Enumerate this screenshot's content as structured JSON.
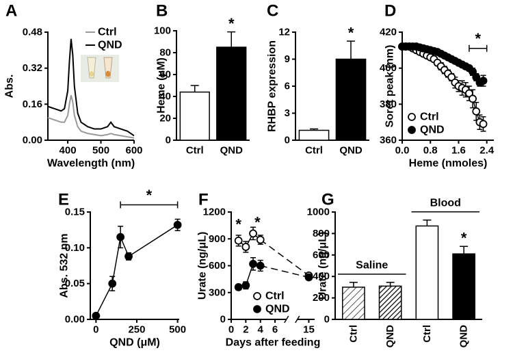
{
  "chart_data": [
    {
      "type": "line",
      "panel": "A",
      "ylabel": "Abs.",
      "xlabel": "Wavelength (nm)",
      "x": [
        340,
        360,
        380,
        390,
        400,
        405,
        410,
        415,
        420,
        430,
        440,
        460,
        480,
        500,
        520,
        530,
        540,
        560,
        580,
        600
      ],
      "series": [
        {
          "name": "Ctrl",
          "color": "#999999",
          "values": [
            0.1,
            0.09,
            0.08,
            0.08,
            0.11,
            0.16,
            0.2,
            0.17,
            0.11,
            0.06,
            0.04,
            0.03,
            0.025,
            0.02,
            0.025,
            0.03,
            0.025,
            0.02,
            0.015,
            0.01
          ]
        },
        {
          "name": "QND",
          "color": "#000000",
          "values": [
            0.15,
            0.14,
            0.13,
            0.14,
            0.22,
            0.35,
            0.45,
            0.38,
            0.24,
            0.12,
            0.08,
            0.06,
            0.05,
            0.05,
            0.06,
            0.08,
            0.06,
            0.05,
            0.04,
            0.02
          ]
        }
      ],
      "xlim": [
        340,
        600
      ],
      "xticks": [
        400,
        500,
        600
      ],
      "ylim": [
        0,
        0.48
      ],
      "yticks": [
        {
          "value": 0,
          "label": "0.00"
        },
        {
          "value": 0.16,
          "label": "0.16"
        },
        {
          "value": 0.32,
          "label": "0.32"
        },
        {
          "value": 0.48,
          "label": "0.48"
        }
      ],
      "legend": "upper right"
    },
    {
      "type": "bar",
      "panel": "B",
      "ylabel": "Heme (μM)",
      "categories": [
        "Ctrl",
        "QND"
      ],
      "values": [
        44,
        85
      ],
      "errors": [
        6,
        14
      ],
      "colors": [
        "#ffffff",
        "#000000"
      ],
      "significance": [
        null,
        "*"
      ],
      "ylim": [
        0,
        100
      ],
      "yticks": [
        0,
        20,
        40,
        60,
        80,
        100
      ]
    },
    {
      "type": "bar",
      "panel": "C",
      "ylabel": "RHBP expression",
      "categories": [
        "Ctrl",
        "QND"
      ],
      "values": [
        1.1,
        9.0
      ],
      "errors": [
        0.15,
        2.0
      ],
      "colors": [
        "#ffffff",
        "#000000"
      ],
      "significance": [
        null,
        "*"
      ],
      "ylim": [
        0,
        12
      ],
      "yticks": [
        0,
        3,
        6,
        9,
        12
      ]
    },
    {
      "type": "line",
      "panel": "D",
      "ylabel": "Soret peak (nm)",
      "xlabel": "Heme (nmoles)",
      "markers": true,
      "x": [
        0,
        0.1,
        0.2,
        0.3,
        0.4,
        0.5,
        0.6,
        0.7,
        0.8,
        0.9,
        1.0,
        1.1,
        1.2,
        1.3,
        1.4,
        1.5,
        1.6,
        1.7,
        1.8,
        1.9,
        2.0,
        2.1,
        2.2,
        2.3
      ],
      "series": [
        {
          "name": "Ctrl",
          "color": "#000000",
          "marker": "open",
          "values": [
            412,
            412,
            412,
            411,
            410,
            409,
            408,
            407,
            406,
            405,
            403,
            401,
            399,
            397,
            395,
            392,
            390,
            389,
            388,
            386,
            383,
            376,
            370,
            369
          ],
          "errors": [
            1,
            1,
            1,
            1,
            1,
            1,
            1,
            1,
            1,
            1,
            1.5,
            2,
            2,
            2,
            2,
            3,
            3,
            4,
            4,
            4,
            5,
            5,
            4,
            4
          ]
        },
        {
          "name": "QND",
          "color": "#000000",
          "marker": "filled",
          "values": [
            412,
            412,
            412,
            412,
            412,
            411.5,
            411,
            410.5,
            410,
            409.5,
            409,
            408,
            407,
            406,
            405,
            404,
            403,
            402,
            401,
            400,
            398,
            395,
            392,
            393
          ],
          "errors": [
            1,
            1,
            1,
            1,
            1,
            1,
            1,
            1,
            1,
            1,
            1,
            1,
            1,
            1,
            1,
            1,
            1,
            1,
            1.5,
            1.5,
            2,
            2,
            2,
            3
          ]
        }
      ],
      "xlim": [
        0,
        2.6
      ],
      "xticks": [
        {
          "value": 0,
          "label": "0.0"
        },
        {
          "value": 0.8,
          "label": "0.8"
        },
        {
          "value": 1.6,
          "label": "1.6"
        },
        {
          "value": 2.4,
          "label": "2.4"
        }
      ],
      "ylim": [
        360,
        420
      ],
      "yticks": [
        360,
        380,
        400,
        420
      ],
      "annotation": {
        "text": "*",
        "x_range": [
          1.9,
          2.4
        ],
        "y": 411
      },
      "legend": "lower left"
    },
    {
      "type": "line",
      "panel": "E",
      "ylabel": "Abs. 532 nm",
      "xlabel": "QND (μM)",
      "markers": true,
      "x": [
        0,
        100,
        150,
        200,
        500
      ],
      "values": [
        0.005,
        0.05,
        0.115,
        0.088,
        0.132
      ],
      "errors": [
        0.003,
        0.01,
        0.015,
        0.005,
        0.008
      ],
      "color": "#000000",
      "marker": "filled",
      "xlim": [
        -35,
        510
      ],
      "xticks": [
        0,
        250,
        500
      ],
      "ylim": [
        0,
        0.15
      ],
      "yticks": [
        {
          "value": 0,
          "label": "0.00"
        },
        {
          "value": 0.05,
          "label": "0.05"
        },
        {
          "value": 0.1,
          "label": "0.10"
        },
        {
          "value": 0.15,
          "label": "0.15"
        }
      ],
      "annotation": {
        "text": "*",
        "x_range": [
          150,
          500
        ],
        "y": 0.16
      }
    },
    {
      "type": "line",
      "panel": "F",
      "ylabel": "Urate (ng/μL)",
      "xlabel": "Days after feeding",
      "markers": true,
      "x": [
        1,
        2,
        3,
        4,
        15
      ],
      "series": [
        {
          "name": "Ctrl",
          "color": "#000000",
          "marker": "open",
          "values": [
            880,
            810,
            960,
            890,
            490
          ],
          "errors": [
            60,
            60,
            70,
            50,
            20
          ]
        },
        {
          "name": "QND",
          "color": "#000000",
          "marker": "filled",
          "values": [
            360,
            380,
            620,
            600,
            470
          ],
          "errors": [
            30,
            40,
            70,
            60,
            20
          ]
        }
      ],
      "xlim": [
        0,
        15.8
      ],
      "x_break": [
        7,
        14
      ],
      "xticks": [
        0,
        2,
        4,
        6,
        15
      ],
      "ylim": [
        0,
        1200
      ],
      "yticks": [
        0,
        300,
        600,
        900,
        1200
      ],
      "annotations": [
        {
          "text": "*",
          "x": 1,
          "y": 1062
        },
        {
          "text": "*",
          "x": 3.6,
          "y": 1085
        }
      ],
      "legend": "lower right"
    },
    {
      "type": "bar",
      "panel": "G",
      "ylabel": "Urate (ng/μL)",
      "categories": [
        "Ctrl",
        "QND",
        "Ctrl",
        "QND"
      ],
      "values": [
        300,
        310,
        870,
        610
      ],
      "errors": [
        45,
        35,
        55,
        70
      ],
      "colors": [
        "#ffffff",
        "#ffffff",
        "#ffffff",
        "#000000"
      ],
      "hatch": [
        "light",
        "dense",
        null,
        null
      ],
      "significance": [
        null,
        null,
        null,
        "*"
      ],
      "group_labels": [
        "Saline",
        "Blood"
      ],
      "group_of": [
        "Saline",
        "Saline",
        "Blood",
        "Blood"
      ],
      "ylim": [
        0,
        1000
      ],
      "yticks": [
        0,
        200,
        400,
        600,
        800,
        1000
      ]
    }
  ]
}
